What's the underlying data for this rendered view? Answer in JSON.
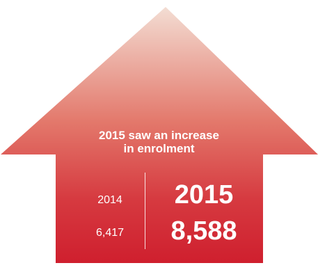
{
  "colors": {
    "arrow_top": "#f3ddd3",
    "arrow_mid": "#e0695c",
    "arrow_bottom": "#cf1f2e",
    "text": "#ffffff"
  },
  "headline": {
    "line1": "2015 saw an increase",
    "line2": "in enrolment"
  },
  "comparison": {
    "previous": {
      "year": "2014",
      "value": "6,417"
    },
    "current": {
      "year": "2015",
      "value": "8,588"
    }
  }
}
